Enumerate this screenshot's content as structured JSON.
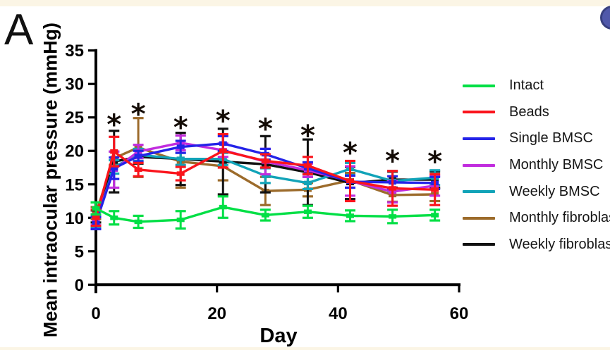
{
  "panel_label": "A",
  "y_axis": {
    "label": "Mean intraocular pressure (mmHg)"
  },
  "x_axis": {
    "label": "Day"
  },
  "legend": {
    "items": [
      {
        "label": "Intact",
        "color": "#00df45"
      },
      {
        "label": "Beads",
        "color": "#fa141c"
      },
      {
        "label": "Single BMSC",
        "color": "#2423e8"
      },
      {
        "label": "Monthly BMSC",
        "color": "#c12cde"
      },
      {
        "label": "Weekly BMSC",
        "color": "#11a3b8"
      },
      {
        "label": "Monthly fibroblast",
        "color": "#9c6b2b"
      },
      {
        "label": "Weekly fibroblast",
        "color": "#111111"
      }
    ]
  },
  "chart_data": {
    "type": "line",
    "title": "",
    "xlabel": "Day",
    "ylabel": "Mean intraocular pressure (mmHg)",
    "xlim": [
      0,
      60
    ],
    "ylim": [
      0,
      35
    ],
    "xticks": [
      0,
      20,
      40,
      60
    ],
    "yticks": [
      0,
      5,
      10,
      15,
      20,
      25,
      30,
      35
    ],
    "grid": false,
    "legend_position": "right",
    "x": [
      0,
      3,
      7,
      14,
      21,
      28,
      35,
      42,
      49,
      56
    ],
    "series": [
      {
        "name": "Intact",
        "color": "#00df45",
        "values": [
          11.4,
          10.0,
          9.4,
          9.7,
          11.6,
          10.4,
          10.9,
          10.3,
          10.2,
          10.4
        ],
        "errors": [
          0.9,
          1.0,
          0.9,
          1.3,
          1.6,
          0.8,
          0.9,
          0.8,
          1.0,
          0.8
        ]
      },
      {
        "name": "Beads",
        "color": "#fa141c",
        "values": [
          10.0,
          19.9,
          17.2,
          16.6,
          20.0,
          18.5,
          17.8,
          15.5,
          14.4,
          14.2
        ],
        "errors": [
          1.2,
          2.2,
          1.0,
          1.0,
          2.5,
          1.0,
          1.3,
          3.0,
          2.6,
          2.3
        ]
      },
      {
        "name": "Single BMSC",
        "color": "#2423e8",
        "values": [
          9.2,
          17.4,
          19.2,
          20.6,
          21.1,
          19.5,
          17.4,
          15.4,
          15.3,
          15.2
        ],
        "errors": [
          0.9,
          1.6,
          0.8,
          0.9,
          1.1,
          0.8,
          0.9,
          0.9,
          0.9,
          0.9
        ]
      },
      {
        "name": "Monthly BMSC",
        "color": "#c12cde",
        "values": [
          9.7,
          17.2,
          19.9,
          21.2,
          20.1,
          18.4,
          17.1,
          15.5,
          13.9,
          14.8
        ],
        "errors": [
          0.8,
          2.7,
          1.0,
          1.1,
          1.0,
          1.9,
          1.0,
          2.2,
          1.6,
          1.5
        ]
      },
      {
        "name": "Weekly BMSC",
        "color": "#11a3b8",
        "values": [
          9.4,
          17.6,
          19.4,
          18.8,
          18.8,
          16.3,
          15.2,
          17.3,
          15.5,
          16.0
        ],
        "errors": [
          0.9,
          1.0,
          0.9,
          0.9,
          0.9,
          1.1,
          0.9,
          0.9,
          1.5,
          1.1
        ]
      },
      {
        "name": "Monthly fibroblast",
        "color": "#9c6b2b",
        "values": [
          10.7,
          18.9,
          20.5,
          18.4,
          17.7,
          14.0,
          14.2,
          15.6,
          13.4,
          13.5
        ],
        "errors": [
          0.9,
          1.0,
          4.4,
          3.9,
          2.1,
          2.1,
          1.0,
          1.1,
          1.0,
          1.0
        ]
      },
      {
        "name": "Weekly fibroblast",
        "color": "#111111",
        "values": [
          10.2,
          18.4,
          19.1,
          18.8,
          18.4,
          18.0,
          16.8,
          15.2,
          15.7,
          15.7
        ],
        "errors": [
          0.9,
          4.6,
          1.0,
          3.9,
          4.9,
          4.2,
          4.9,
          2.4,
          1.2,
          1.2
        ]
      }
    ],
    "annotations": {
      "marker": "*",
      "days": [
        3,
        7,
        14,
        21,
        28,
        35,
        42,
        49,
        56
      ],
      "y_values": [
        25.0,
        26.6,
        24.6,
        25.6,
        24.4,
        23.4,
        20.8,
        19.6,
        19.5
      ]
    }
  }
}
